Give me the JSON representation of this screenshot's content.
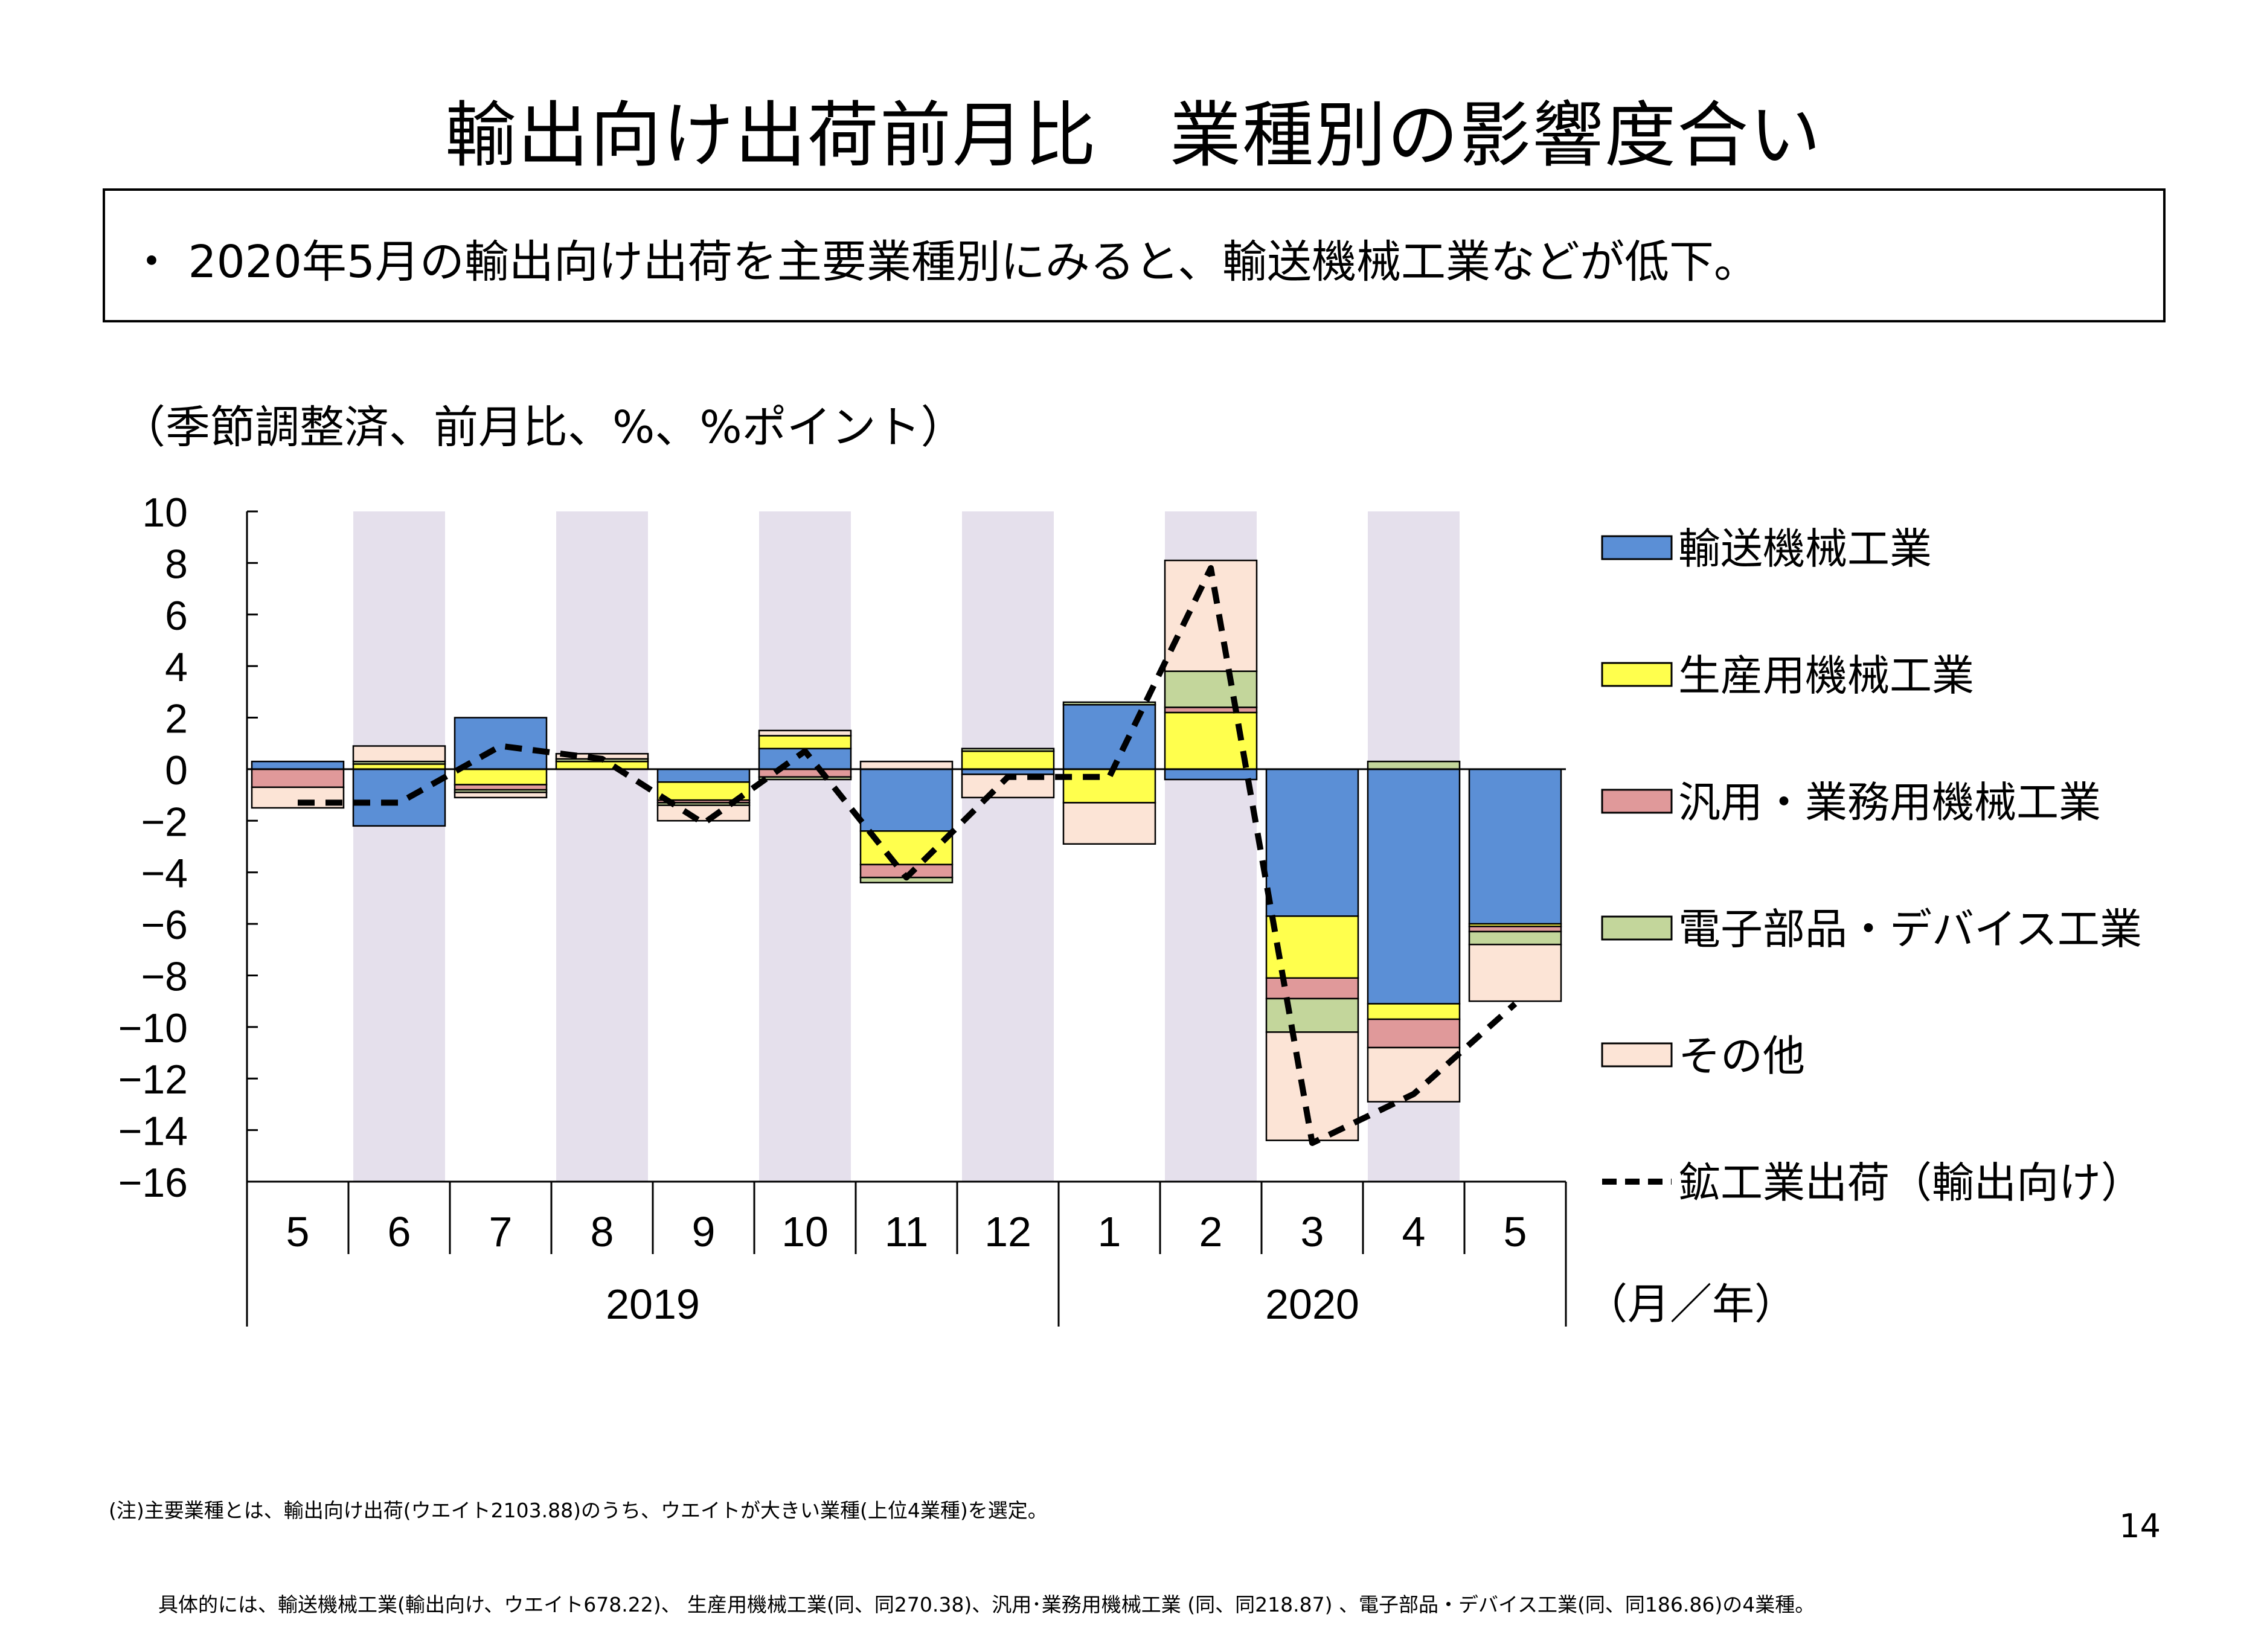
{
  "title": "輸出向け出荷前月比　業種別の影響度合い",
  "summary": "・ 2020年5月の輸出向け出荷を主要業種別にみると、輸送機械工業などが低下。",
  "unit_label": "（季節調整済、前月比、%、%ポイント）",
  "notes": {
    "line1": "(注)主要業種とは、輸出向け出荷(ウエイト2103.88)のうち、ウエイトが大きい業種(上位4業種)を選定。",
    "line2": "具体的には、輸送機械工業(輸出向け、ウエイト678.22)、 生産用機械工業(同、同270.38)、汎用･業務用機械工業 (同、同218.87) 、電子部品・デバイス工業(同、同186.86)の4業種。"
  },
  "page_number": "14",
  "colors": {
    "transport": "#5b8fd6",
    "production": "#ffff4d",
    "general": "#e0999a",
    "electronic": "#c3d69b",
    "other": "#fce4d6",
    "shade": "#e5e0ec",
    "line": "#000000"
  },
  "chart_data": {
    "type": "bar",
    "stacked": true,
    "ylim": [
      -16,
      10
    ],
    "yticks": [
      "10",
      "8",
      "6",
      "4",
      "2",
      "0",
      "−2",
      "−4",
      "−6",
      "−8",
      "−10",
      "−12",
      "−14",
      "−16"
    ],
    "categories": [
      "5",
      "6",
      "7",
      "8",
      "9",
      "10",
      "11",
      "12",
      "1",
      "2",
      "3",
      "4",
      "5"
    ],
    "years": [
      {
        "label": "2019",
        "start": 0,
        "end": 7
      },
      {
        "label": "2020",
        "start": 8,
        "end": 12
      }
    ],
    "x_unit_label": "（月／年）",
    "shaded_categories": [
      1,
      3,
      5,
      7,
      9,
      11
    ],
    "series": [
      {
        "name": "輸送機械工業",
        "key": "transport",
        "values": [
          0.3,
          -2.2,
          2.0,
          0.0,
          -0.5,
          0.8,
          -2.4,
          -0.2,
          2.5,
          -0.4,
          -5.7,
          -9.1,
          -6.0
        ]
      },
      {
        "name": "生産用機械工業",
        "key": "production",
        "values": [
          0.0,
          0.2,
          -0.6,
          0.3,
          -0.7,
          0.5,
          -1.3,
          0.7,
          -1.3,
          2.2,
          -2.4,
          -0.6,
          -0.1
        ]
      },
      {
        "name": "汎用・業務用機械工業",
        "key": "general",
        "values": [
          -0.7,
          0.0,
          -0.2,
          0.0,
          -0.1,
          -0.3,
          -0.5,
          0.0,
          0.0,
          0.2,
          -0.8,
          -1.1,
          -0.2
        ]
      },
      {
        "name": "電子部品・デバイス工業",
        "key": "electronic",
        "values": [
          0.0,
          0.1,
          -0.1,
          0.1,
          -0.1,
          -0.1,
          -0.2,
          0.1,
          0.1,
          1.4,
          -1.3,
          0.3,
          -0.5
        ]
      },
      {
        "name": "その他",
        "key": "other",
        "values": [
          -0.8,
          0.6,
          -0.2,
          0.2,
          -0.6,
          0.2,
          0.3,
          -0.9,
          -1.6,
          4.3,
          -4.2,
          -2.1,
          -2.2
        ]
      }
    ],
    "line_series": {
      "name": "鉱工業出荷（輸出向け）",
      "values": [
        -1.3,
        -1.3,
        0.9,
        0.4,
        -2.1,
        0.7,
        -4.2,
        -0.3,
        -0.3,
        7.8,
        -14.5,
        -12.6,
        -9.1
      ]
    }
  }
}
